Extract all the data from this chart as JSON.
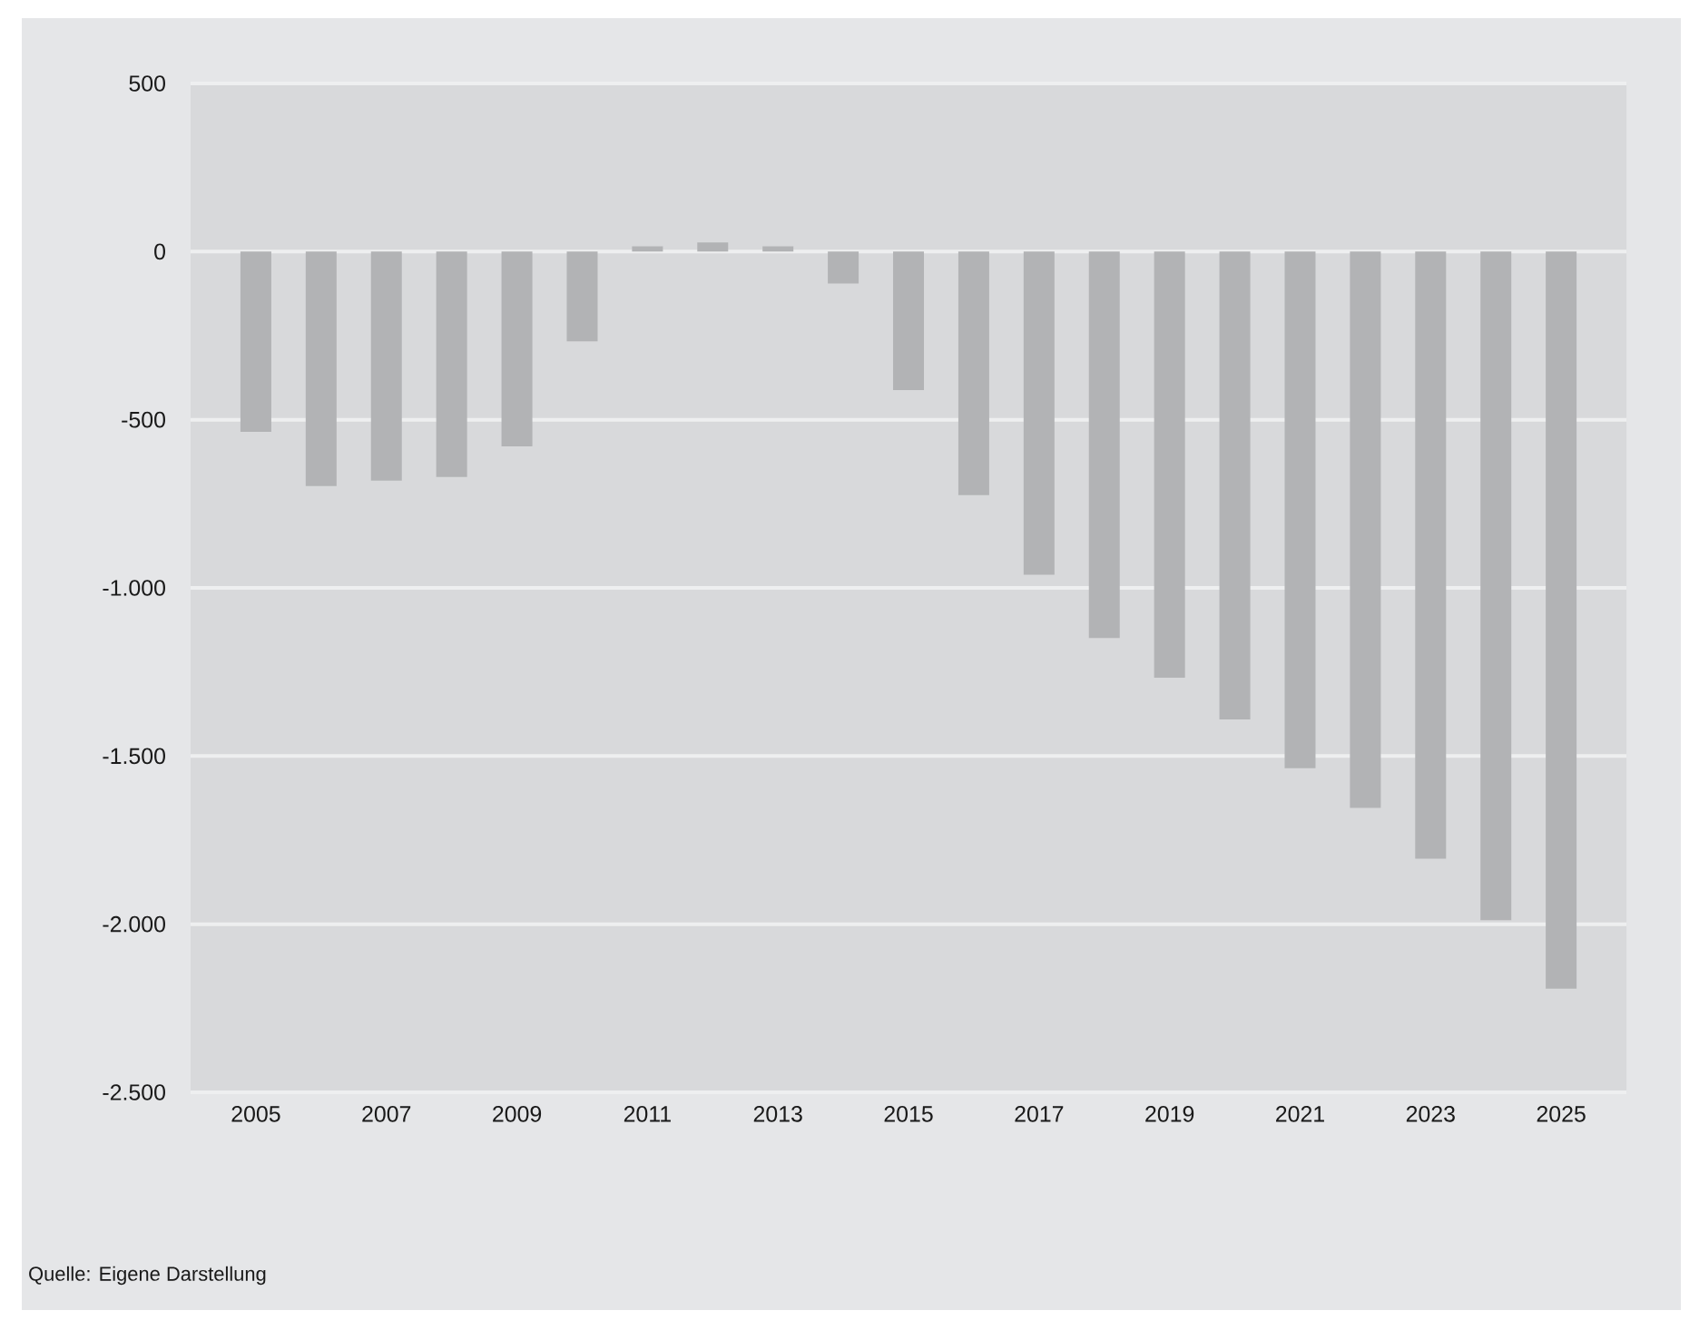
{
  "chart_data": {
    "type": "bar",
    "categories": [
      "2005",
      null,
      "2007",
      null,
      "2009",
      null,
      "2011",
      null,
      "2013",
      null,
      "2015",
      null,
      "2017",
      null,
      "2019",
      null,
      "2021",
      null,
      "2023",
      null,
      "2025"
    ],
    "values": [
      -536,
      -697,
      -681,
      -670,
      -579,
      -267,
      16,
      27,
      16,
      -95,
      -412,
      -724,
      -961,
      -1149,
      -1267,
      -1391,
      -1536,
      -1654,
      -1805,
      -1988,
      -2192
    ],
    "color": "#b2b3b5",
    "ylim": [
      -2500,
      500
    ],
    "yticks": [
      500,
      0,
      -500,
      {
        "value": -1000,
        "label": "-1.000"
      },
      {
        "value": -1500,
        "label": "-1.500"
      },
      {
        "value": -2000,
        "label": "-2.000"
      },
      {
        "value": -2500,
        "label": "-2.500"
      }
    ],
    "grid": "y",
    "annotations": [
      "Quelle: Eigene Darstellung"
    ]
  }
}
